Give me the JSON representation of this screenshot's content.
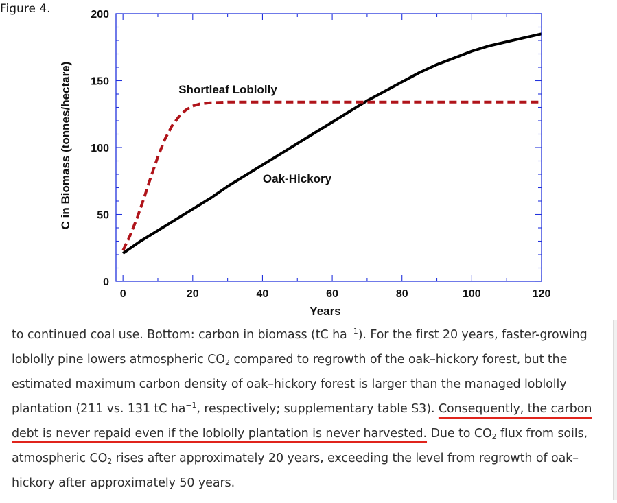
{
  "figure_label": "Figure 4.",
  "caption": {
    "p1": "to continued coal use. Bottom: carbon in biomass (tC ha",
    "sup1": "−1",
    "p2": "). For the first 20 years, faster-growing loblolly pine lowers atmospheric CO",
    "sub1": "2",
    "p3": " compared to regrowth of the oak–hickory forest, but the estimated maximum carbon density of oak–hickory forest is larger than the managed loblolly plantation (211 vs. 131 tC ha",
    "sup2": "−1",
    "p4": ", respectively; supplementary table S3). ",
    "highlight": "Consequently, the carbon debt is never repaid even if the loblolly plantation is never harvested.",
    "p5": " Due to CO",
    "sub2": "2",
    "p6": " flux from soils, atmospheric CO",
    "sub3": "2",
    "p7": " rises after approximately 20 years, exceeding the level from regrowth of oak–hickory after approximately 50 years."
  },
  "colors": {
    "axis": "#2233dd",
    "oak_hickory": "#000000",
    "shortleaf_loblolly": "#b0141a",
    "highlight_underline": "#e0241c"
  },
  "chart_data": {
    "type": "line",
    "title": "",
    "xlabel": "Years",
    "ylabel": "C in Biomass (tonnes/hectare)",
    "xlim": [
      -2,
      120
    ],
    "ylim": [
      0,
      200
    ],
    "xticks": [
      0,
      20,
      40,
      60,
      80,
      100,
      120
    ],
    "yticks": [
      0,
      50,
      100,
      150,
      200
    ],
    "grid": false,
    "series": [
      {
        "name": "Oak-Hickory",
        "style": "solid",
        "x": [
          0,
          5,
          10,
          15,
          20,
          25,
          30,
          35,
          40,
          45,
          50,
          55,
          60,
          65,
          70,
          75,
          80,
          85,
          90,
          95,
          100,
          105,
          110,
          115,
          120
        ],
        "y": [
          21,
          30,
          38,
          46,
          54,
          62,
          71,
          79,
          87,
          95,
          103,
          111,
          119,
          127,
          135,
          142,
          149,
          156,
          162,
          167,
          172,
          176,
          179,
          182,
          185
        ]
      },
      {
        "name": "Shortleaf Loblolly",
        "style": "dashed",
        "x": [
          0,
          2,
          4,
          6,
          8,
          10,
          12,
          14,
          16,
          18,
          20,
          22,
          25,
          30,
          35,
          40,
          50,
          60,
          70,
          80,
          90,
          100,
          110,
          120
        ],
        "y": [
          23,
          34,
          47,
          62,
          78,
          93,
          106,
          116,
          123,
          128,
          131,
          132.5,
          133.5,
          134,
          134,
          134,
          134,
          134,
          134,
          134,
          134,
          134,
          134,
          134
        ]
      }
    ]
  }
}
